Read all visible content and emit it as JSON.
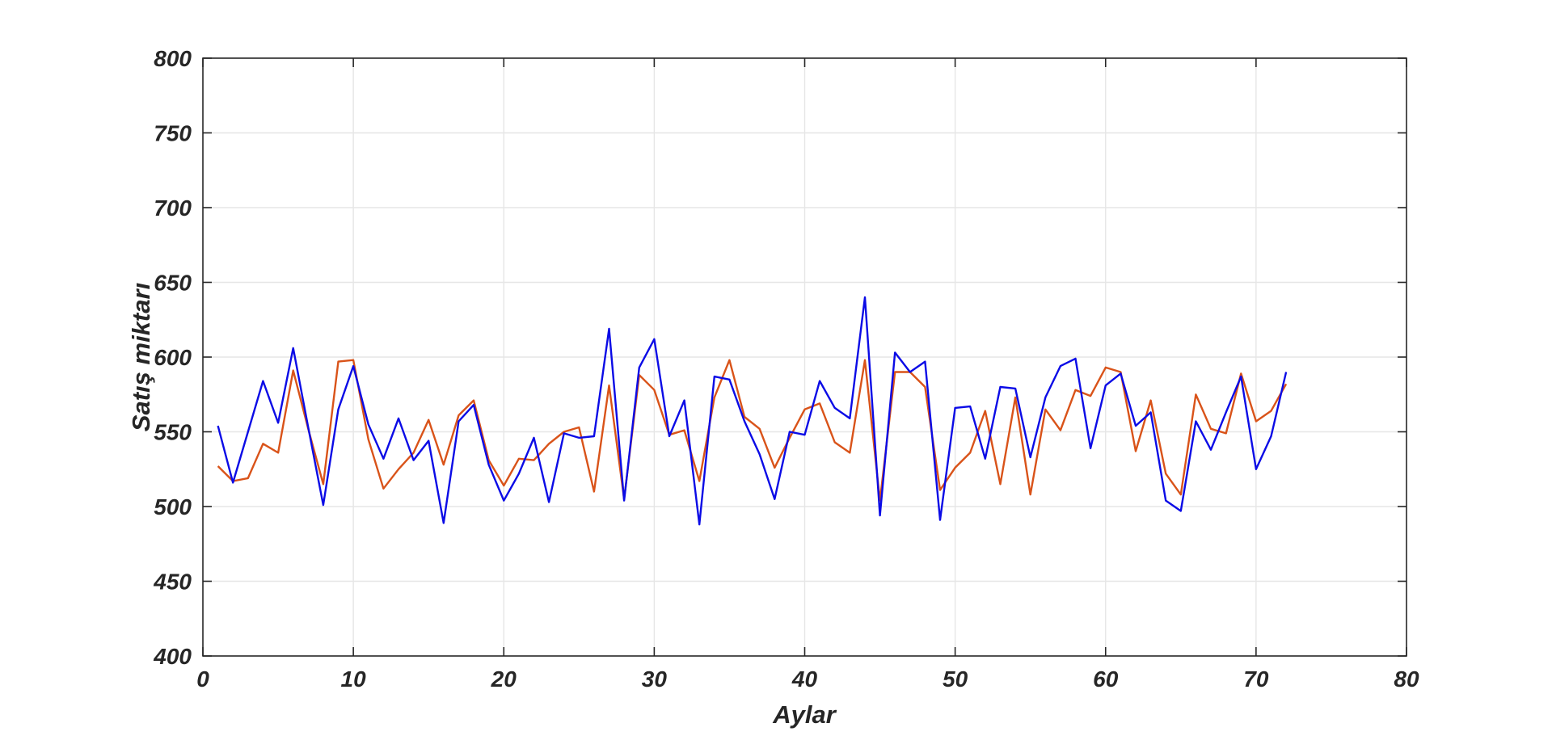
{
  "chart_data": {
    "type": "line",
    "title": "",
    "xlabel": "Aylar",
    "ylabel": "Satış miktarı",
    "xlim": [
      0,
      80
    ],
    "ylim": [
      400,
      800
    ],
    "xticks": [
      0,
      10,
      20,
      30,
      40,
      50,
      60,
      70,
      80
    ],
    "yticks": [
      400,
      450,
      500,
      550,
      600,
      650,
      700,
      750,
      800
    ],
    "grid": true,
    "legend": "none",
    "background_color": "#ffffff",
    "grid_color": "#e6e6e6",
    "axis_color": "#262626",
    "x_first": 1,
    "x_step": 1,
    "series": [
      {
        "name": "orange-series",
        "color": "#D95319",
        "values": [
          527,
          517,
          519,
          542,
          536,
          591,
          552,
          515,
          597,
          598,
          545,
          512,
          525,
          536,
          558,
          528,
          561,
          571,
          531,
          514,
          532,
          531,
          542,
          550,
          553,
          510,
          581,
          505,
          588,
          578,
          548,
          551,
          517,
          573,
          598,
          560,
          552,
          526,
          546,
          565,
          569,
          543,
          536,
          598,
          504,
          590,
          590,
          580,
          511,
          526,
          536,
          564,
          515,
          573,
          508,
          565,
          551,
          578,
          574,
          593,
          590,
          537,
          571,
          522,
          508,
          575,
          552,
          549,
          589,
          557,
          564,
          582
        ]
      },
      {
        "name": "blue-series",
        "color": "#0b0bE6",
        "values": [
          554,
          516,
          550,
          584,
          556,
          606,
          553,
          501,
          565,
          594,
          555,
          532,
          559,
          531,
          544,
          489,
          557,
          568,
          528,
          504,
          522,
          546,
          503,
          549,
          546,
          547,
          619,
          504,
          593,
          612,
          547,
          571,
          488,
          587,
          585,
          557,
          535,
          505,
          550,
          548,
          584,
          566,
          559,
          640,
          494,
          603,
          590,
          597,
          491,
          566,
          567,
          532,
          580,
          579,
          533,
          573,
          594,
          599,
          539,
          581,
          589,
          554,
          563,
          504,
          497,
          557,
          538,
          563,
          587,
          525,
          547,
          590
        ]
      }
    ]
  }
}
